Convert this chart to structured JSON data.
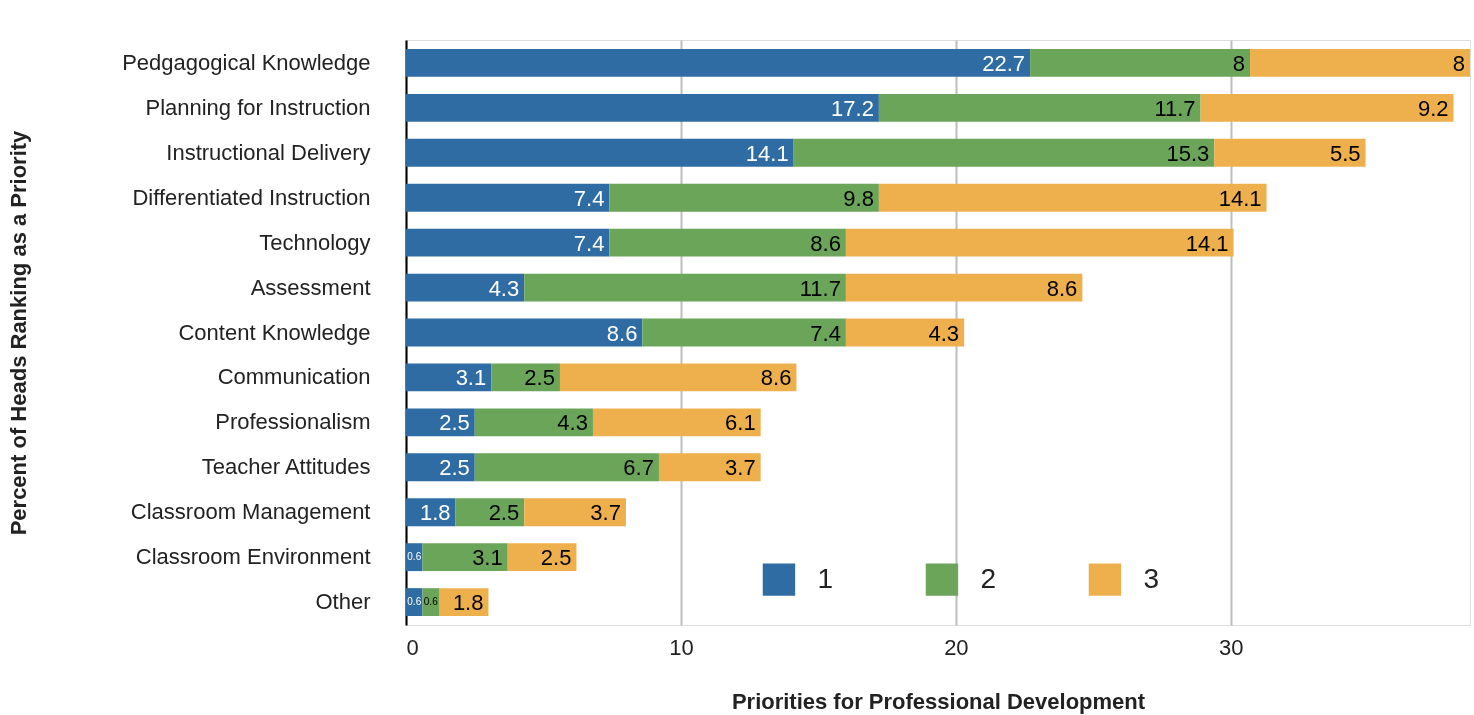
{
  "chart_data": {
    "type": "bar",
    "orientation": "horizontal",
    "stacked": true,
    "xlabel": "Priorities for Professional Development",
    "ylabel": "Percent of Heads Ranking as a Priority",
    "categories": [
      "Pedgagogical Knowledge",
      "Planning for Instruction",
      "Instructional Delivery",
      "Differentiated Instruction",
      "Technology",
      "Assessment",
      "Content Knowledge",
      "Communication",
      "Professionalism",
      "Teacher Attitudes",
      "Classroom Management",
      "Classroom Environment",
      "Other"
    ],
    "series": [
      {
        "name": "1",
        "color": "#2e6ca3",
        "values": [
          22.7,
          17.2,
          14.1,
          7.4,
          7.4,
          4.3,
          8.6,
          3.1,
          2.5,
          2.5,
          1.8,
          0.6,
          0.6
        ]
      },
      {
        "name": "2",
        "color": "#6aa55a",
        "values": [
          8,
          11.7,
          15.3,
          9.8,
          8.6,
          11.7,
          7.4,
          2.5,
          4.3,
          6.7,
          2.5,
          3.1,
          0.6
        ]
      },
      {
        "name": "3",
        "color": "#eeaf4d",
        "values": [
          8,
          9.2,
          5.5,
          14.1,
          14.1,
          8.6,
          4.3,
          8.6,
          6.1,
          3.7,
          3.7,
          2.5,
          1.8
        ]
      }
    ],
    "xlim": [
      0,
      38.7
    ],
    "xticks": [
      0,
      10,
      20,
      30
    ],
    "grid": "x",
    "legend": "bottom",
    "data_labels": true
  }
}
